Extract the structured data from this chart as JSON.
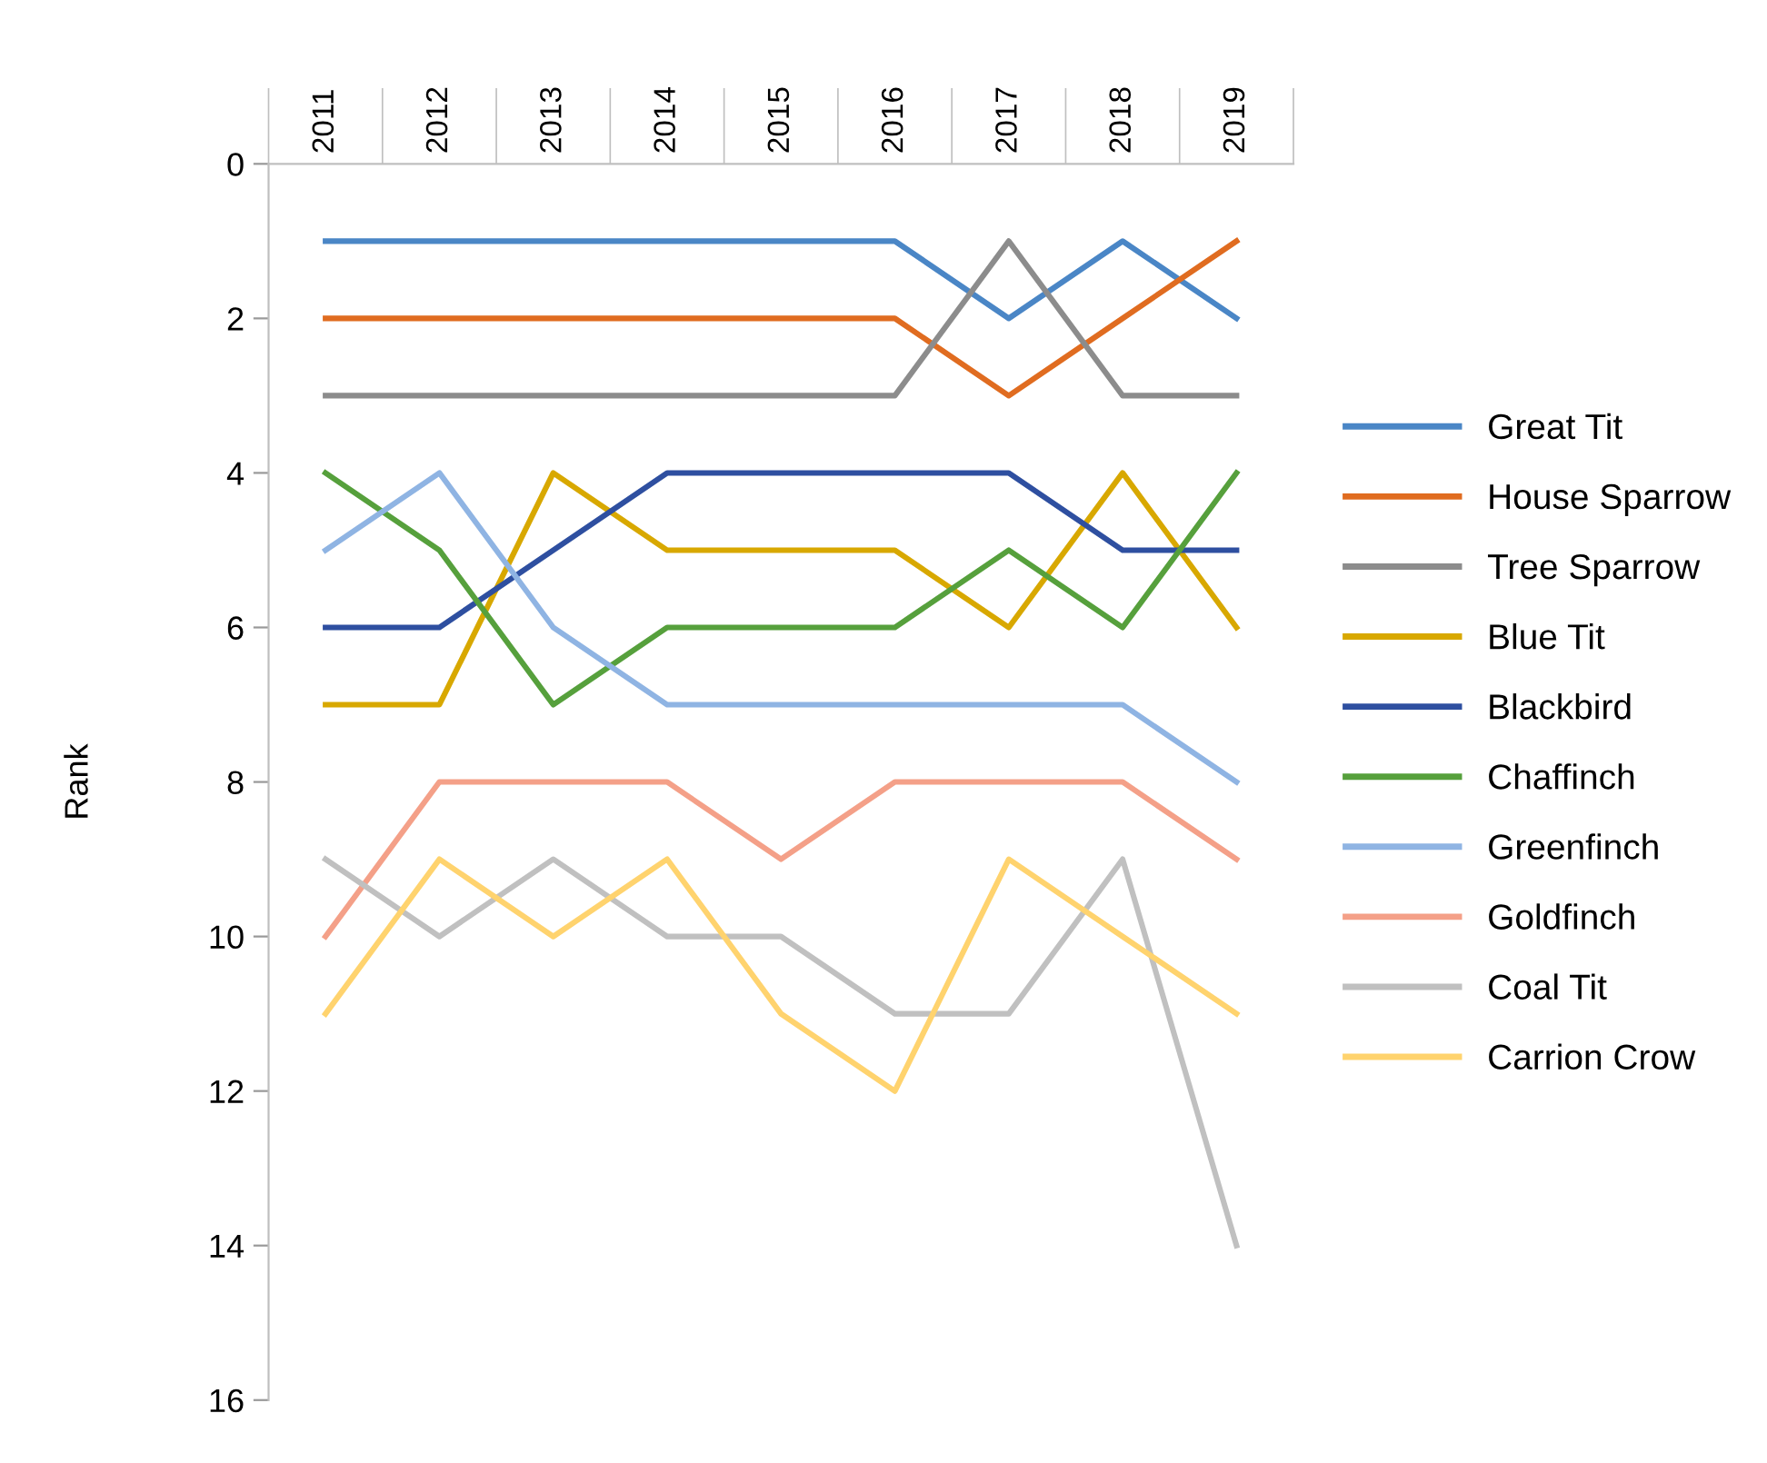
{
  "chart_data": {
    "type": "line",
    "ylabel": "Rank",
    "categories": [
      "2011",
      "2012",
      "2013",
      "2014",
      "2015",
      "2016",
      "2017",
      "2018",
      "2019"
    ],
    "ylim": [
      16,
      0
    ],
    "yticks": [
      0,
      2,
      4,
      6,
      8,
      10,
      12,
      14,
      16
    ],
    "grid": false,
    "legend": "right",
    "marker": "none",
    "line_style": "solid",
    "series": [
      {
        "name": "Great Tit",
        "color": "#4a86c6",
        "values": [
          1,
          1,
          1,
          1,
          1,
          1,
          2,
          1,
          2
        ]
      },
      {
        "name": "House Sparrow",
        "color": "#e06c20",
        "values": [
          2,
          2,
          2,
          2,
          2,
          2,
          3,
          2,
          1
        ]
      },
      {
        "name": "Tree Sparrow",
        "color": "#8c8c8c",
        "values": [
          3,
          3,
          3,
          3,
          3,
          3,
          1,
          3,
          3
        ]
      },
      {
        "name": "Blue Tit",
        "color": "#d8a800",
        "values": [
          7,
          7,
          4,
          5,
          5,
          5,
          6,
          4,
          6
        ]
      },
      {
        "name": "Blackbird",
        "color": "#2e4fa0",
        "values": [
          6,
          6,
          5,
          4,
          4,
          4,
          4,
          5,
          5
        ]
      },
      {
        "name": "Chaffinch",
        "color": "#56a03c",
        "values": [
          4,
          5,
          7,
          6,
          6,
          6,
          5,
          6,
          4
        ]
      },
      {
        "name": "Greenfinch",
        "color": "#8fb4e3",
        "values": [
          5,
          4,
          6,
          7,
          7,
          7,
          7,
          7,
          8
        ]
      },
      {
        "name": "Goldfinch",
        "color": "#f4a088",
        "values": [
          10,
          8,
          8,
          8,
          9,
          8,
          8,
          8,
          9
        ]
      },
      {
        "name": "Coal Tit",
        "color": "#c0c0c0",
        "values": [
          9,
          10,
          9,
          10,
          10,
          11,
          11,
          9,
          14
        ]
      },
      {
        "name": "Carrion Crow",
        "color": "#ffd36e",
        "values": [
          11,
          9,
          10,
          9,
          11,
          12,
          9,
          10,
          11
        ]
      }
    ]
  }
}
